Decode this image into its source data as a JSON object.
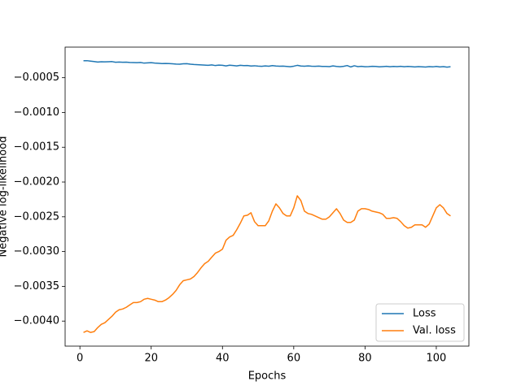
{
  "chart_data": {
    "type": "line",
    "xlabel": "Epochs",
    "ylabel": "Negative log-likelihood",
    "x": [
      1,
      2,
      3,
      4,
      5,
      6,
      7,
      8,
      9,
      10,
      11,
      12,
      13,
      14,
      15,
      16,
      17,
      18,
      19,
      20,
      21,
      22,
      23,
      24,
      25,
      26,
      27,
      28,
      29,
      30,
      31,
      32,
      33,
      34,
      35,
      36,
      37,
      38,
      39,
      40,
      41,
      42,
      43,
      44,
      45,
      46,
      47,
      48,
      49,
      50,
      51,
      52,
      53,
      54,
      55,
      56,
      57,
      58,
      59,
      60,
      61,
      62,
      63,
      64,
      65,
      66,
      67,
      68,
      69,
      70,
      71,
      72,
      73,
      74,
      75,
      76,
      77,
      78,
      79,
      80,
      81,
      82,
      83,
      84,
      85,
      86,
      87,
      88,
      89,
      90,
      91,
      92,
      93,
      94,
      95,
      96,
      97,
      98,
      99,
      100,
      101,
      102,
      103,
      104
    ],
    "series": [
      {
        "name": "Loss",
        "color": "#1f77b4",
        "values": [
          -0.000255,
          -0.000255,
          -0.000262,
          -0.000268,
          -0.000275,
          -0.00027,
          -0.000272,
          -0.00027,
          -0.000268,
          -0.000278,
          -0.000275,
          -0.000277,
          -0.000276,
          -0.00028,
          -0.000282,
          -0.000284,
          -0.000281,
          -0.00029,
          -0.000286,
          -0.000283,
          -0.00029,
          -0.000292,
          -0.000296,
          -0.000295,
          -0.000297,
          -0.0003,
          -0.000304,
          -0.000306,
          -0.0003,
          -0.000298,
          -0.000305,
          -0.00031,
          -0.000312,
          -0.000315,
          -0.000318,
          -0.000322,
          -0.000316,
          -0.000325,
          -0.000318,
          -0.000322,
          -0.00033,
          -0.00032,
          -0.000325,
          -0.00033,
          -0.000322,
          -0.000326,
          -0.000325,
          -0.000332,
          -0.000328,
          -0.000333,
          -0.000336,
          -0.00033,
          -0.000335,
          -0.000326,
          -0.000332,
          -0.000335,
          -0.000333,
          -0.000338,
          -0.000342,
          -0.000334,
          -0.000322,
          -0.000332,
          -0.000335,
          -0.00033,
          -0.000334,
          -0.000336,
          -0.000333,
          -0.000338,
          -0.000337,
          -0.00034,
          -0.00033,
          -0.000338,
          -0.000342,
          -0.000336,
          -0.000325,
          -0.000345,
          -0.000328,
          -0.00034,
          -0.000336,
          -0.000342,
          -0.00034,
          -0.000336,
          -0.000338,
          -0.000343,
          -0.00034,
          -0.000336,
          -0.000342,
          -0.000338,
          -0.00034,
          -0.000336,
          -0.000342,
          -0.000338,
          -0.00034,
          -0.000345,
          -0.00034,
          -0.000343,
          -0.000346,
          -0.00034,
          -0.000344,
          -0.000338,
          -0.000345,
          -0.00034,
          -0.000348,
          -0.000342
        ]
      },
      {
        "name": "Val. loss",
        "color": "#ff7f0e",
        "values": [
          -0.004163,
          -0.00414,
          -0.004163,
          -0.004151,
          -0.004093,
          -0.004047,
          -0.004023,
          -0.003977,
          -0.00393,
          -0.003872,
          -0.003837,
          -0.003826,
          -0.003802,
          -0.003767,
          -0.003733,
          -0.003733,
          -0.003721,
          -0.003686,
          -0.003674,
          -0.003686,
          -0.003698,
          -0.003721,
          -0.003721,
          -0.003698,
          -0.003663,
          -0.003616,
          -0.003558,
          -0.003477,
          -0.003419,
          -0.003407,
          -0.003395,
          -0.00336,
          -0.003302,
          -0.003233,
          -0.003174,
          -0.00314,
          -0.003081,
          -0.003023,
          -0.003,
          -0.002965,
          -0.002837,
          -0.002791,
          -0.002767,
          -0.002686,
          -0.002593,
          -0.002488,
          -0.002477,
          -0.002442,
          -0.00257,
          -0.002628,
          -0.002628,
          -0.002628,
          -0.002558,
          -0.002419,
          -0.002314,
          -0.002372,
          -0.002453,
          -0.002488,
          -0.002488,
          -0.002372,
          -0.002198,
          -0.002267,
          -0.002419,
          -0.002453,
          -0.002465,
          -0.002488,
          -0.002512,
          -0.002535,
          -0.002535,
          -0.0025,
          -0.002442,
          -0.002384,
          -0.002453,
          -0.002547,
          -0.002581,
          -0.002581,
          -0.002547,
          -0.002419,
          -0.002384,
          -0.002384,
          -0.002395,
          -0.002419,
          -0.00243,
          -0.002442,
          -0.002465,
          -0.002523,
          -0.002523,
          -0.002512,
          -0.002523,
          -0.00257,
          -0.002628,
          -0.002663,
          -0.002651,
          -0.002616,
          -0.002616,
          -0.002616,
          -0.002651,
          -0.002605,
          -0.002488,
          -0.002372,
          -0.002326,
          -0.002372,
          -0.002453,
          -0.002488
        ]
      }
    ],
    "xlim": [
      -4.15,
      109.15
    ],
    "xticks": [
      0,
      20,
      40,
      60,
      80,
      100
    ],
    "ylim": [
      -0.00436,
      -6e-05
    ],
    "yticks": [
      {
        "value": -0.004,
        "label": "−0.0040"
      },
      {
        "value": -0.0035,
        "label": "−0.0035"
      },
      {
        "value": -0.003,
        "label": "−0.0030"
      },
      {
        "value": -0.0025,
        "label": "−0.0025"
      },
      {
        "value": -0.002,
        "label": "−0.0020"
      },
      {
        "value": -0.0015,
        "label": "−0.0015"
      },
      {
        "value": -0.001,
        "label": "−0.0010"
      },
      {
        "value": -0.0005,
        "label": "−0.0005"
      }
    ],
    "legend": "lower right",
    "grid": false
  }
}
